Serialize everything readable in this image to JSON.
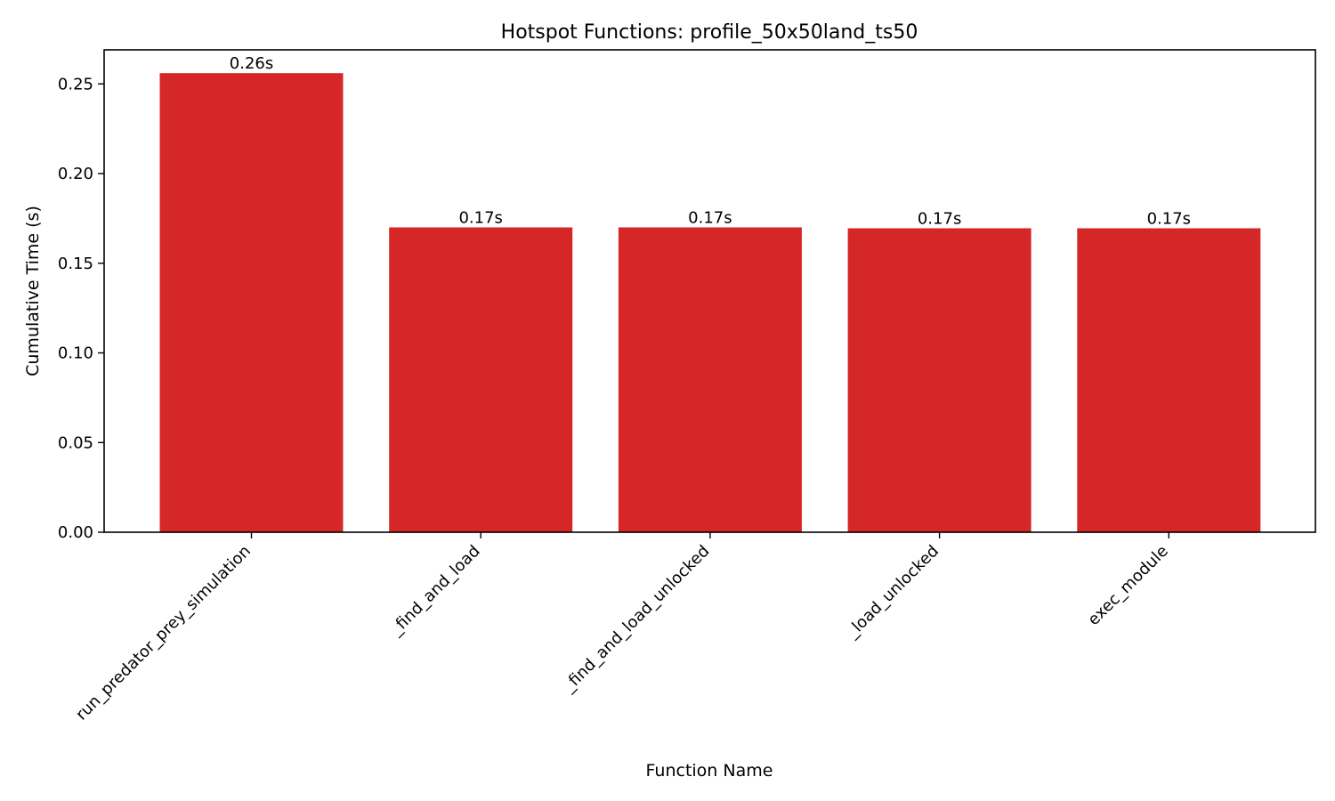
{
  "chart_data": {
    "type": "bar",
    "title": "Hotspot Functions: profile_50x50land_ts50",
    "xlabel": "Function Name",
    "ylabel": "Cumulative Time (s)",
    "categories": [
      "run_predator_prey_simulation",
      "_find_and_load",
      "_find_and_load_unlocked",
      "_load_unlocked",
      "exec_module"
    ],
    "values": [
      0.256,
      0.17,
      0.17,
      0.1695,
      0.1695
    ],
    "data_labels": [
      "0.26s",
      "0.17s",
      "0.17s",
      "0.17s",
      "0.17s"
    ],
    "ylim": [
      0,
      0.269
    ],
    "yticks": [
      0.0,
      0.05,
      0.1,
      0.15,
      0.2,
      0.25
    ],
    "ytick_labels": [
      "0.00",
      "0.05",
      "0.10",
      "0.15",
      "0.20",
      "0.25"
    ],
    "bar_color": "#d62728",
    "grid": false,
    "legend": "none"
  }
}
